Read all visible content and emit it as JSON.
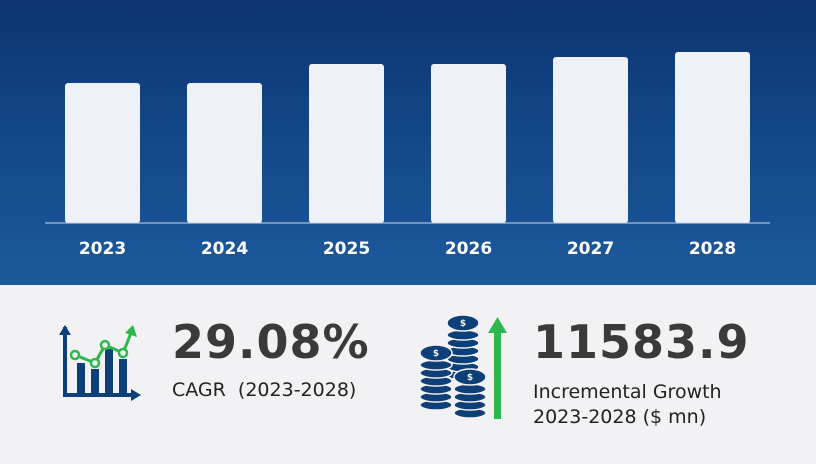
{
  "chart_data": {
    "type": "bar",
    "categories": [
      "2023",
      "2024",
      "2025",
      "2026",
      "2027",
      "2028"
    ],
    "values": [
      140,
      140,
      159,
      159,
      166,
      171
    ],
    "title": "",
    "xlabel": "",
    "ylabel": "",
    "ylim": [
      0,
      171
    ],
    "grid": false,
    "bar_color": "#eef1f6",
    "background_color": "#0c3470"
  },
  "stats": {
    "cagr": {
      "value": "29.08%",
      "label": "CAGR  (2023-2028)",
      "icon": "growth-chart-icon"
    },
    "growth": {
      "value": "11583.9",
      "label_line1": "Incremental Growth",
      "label_line2": "2023-2028 ($ mn)",
      "icon": "coin-stacks-up-arrow-icon"
    }
  },
  "colors": {
    "accent_green": "#2db84d",
    "icon_blue": "#0d3f78"
  }
}
